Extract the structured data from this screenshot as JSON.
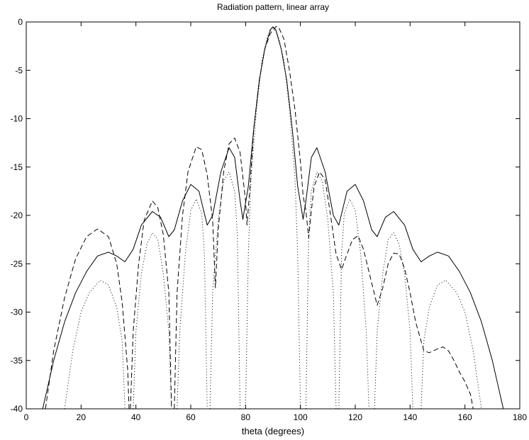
{
  "chart_data": {
    "type": "line",
    "title": "Radiation pattern, linear array",
    "xlabel": "theta (degrees)",
    "ylabel": "",
    "xlim": [
      0,
      180
    ],
    "ylim": [
      -40,
      0
    ],
    "xticks": [
      "0",
      "20",
      "40",
      "60",
      "80",
      "100",
      "120",
      "140",
      "160",
      "180"
    ],
    "yticks": [
      "0",
      "-5",
      "-10",
      "-15",
      "-20",
      "-25",
      "-30",
      "-35",
      "-40"
    ],
    "grid": false,
    "legend": "none",
    "series": [
      {
        "style": "solid",
        "color": "#000000",
        "points": [
          [
            6,
            -40
          ],
          [
            10,
            -35
          ],
          [
            14,
            -31
          ],
          [
            18,
            -28
          ],
          [
            22,
            -25.8
          ],
          [
            26,
            -24.2
          ],
          [
            30,
            -23.8
          ],
          [
            33,
            -24.2
          ],
          [
            36,
            -24.8
          ],
          [
            39,
            -23.5
          ],
          [
            42,
            -21
          ],
          [
            46,
            -19.6
          ],
          [
            49,
            -20.2
          ],
          [
            52,
            -22.2
          ],
          [
            54,
            -21.5
          ],
          [
            57,
            -18.5
          ],
          [
            60,
            -16.8
          ],
          [
            63,
            -17.5
          ],
          [
            66,
            -21
          ],
          [
            68,
            -20
          ],
          [
            71,
            -15.5
          ],
          [
            74,
            -13
          ],
          [
            76,
            -14
          ],
          [
            78,
            -18.5
          ],
          [
            79,
            -20.4
          ],
          [
            81,
            -17
          ],
          [
            83,
            -11
          ],
          [
            85,
            -6
          ],
          [
            87,
            -2.8
          ],
          [
            89,
            -0.8
          ],
          [
            90,
            -0.5
          ],
          [
            91,
            -0.8
          ],
          [
            93,
            -2.8
          ],
          [
            95,
            -6
          ],
          [
            97,
            -11
          ],
          [
            99,
            -17
          ],
          [
            101,
            -20.4
          ],
          [
            102,
            -18.5
          ],
          [
            104,
            -14
          ],
          [
            106,
            -13
          ],
          [
            109,
            -15.5
          ],
          [
            112,
            -20
          ],
          [
            114,
            -21
          ],
          [
            117,
            -17.5
          ],
          [
            120,
            -16.8
          ],
          [
            123,
            -18.5
          ],
          [
            126,
            -21.5
          ],
          [
            128,
            -22.2
          ],
          [
            131,
            -20.2
          ],
          [
            134,
            -19.6
          ],
          [
            138,
            -21
          ],
          [
            141,
            -23.5
          ],
          [
            144,
            -24.8
          ],
          [
            147,
            -24.2
          ],
          [
            150,
            -23.8
          ],
          [
            154,
            -24.2
          ],
          [
            158,
            -25.8
          ],
          [
            162,
            -28
          ],
          [
            166,
            -31
          ],
          [
            170,
            -35
          ],
          [
            174,
            -40
          ]
        ]
      },
      {
        "style": "dashed",
        "color": "#000000",
        "points": [
          [
            7,
            -40
          ],
          [
            10,
            -34
          ],
          [
            14,
            -28.5
          ],
          [
            18,
            -24.5
          ],
          [
            22,
            -22.2
          ],
          [
            26,
            -21.4
          ],
          [
            30,
            -22.2
          ],
          [
            33,
            -25
          ],
          [
            35,
            -29
          ],
          [
            37,
            -36
          ],
          [
            37.5,
            -40
          ],
          [
            null,
            null
          ],
          [
            38,
            -40
          ],
          [
            39,
            -32
          ],
          [
            41,
            -25
          ],
          [
            43,
            -20.5
          ],
          [
            46,
            -18.5
          ],
          [
            48,
            -19.2
          ],
          [
            50,
            -22
          ],
          [
            52,
            -28
          ],
          [
            53,
            -40
          ],
          [
            null,
            null
          ],
          [
            54,
            -40
          ],
          [
            55,
            -28
          ],
          [
            57,
            -20
          ],
          [
            59,
            -15.5
          ],
          [
            62,
            -12.9
          ],
          [
            64,
            -13.2
          ],
          [
            66,
            -15.8
          ],
          [
            68,
            -20.5
          ],
          [
            69,
            -27.5
          ],
          [
            70,
            -21.5
          ],
          [
            72,
            -15.5
          ],
          [
            74,
            -12.6
          ],
          [
            76,
            -12
          ],
          [
            78,
            -13.5
          ],
          [
            80,
            -18.5
          ],
          [
            80.5,
            -21
          ],
          [
            81.5,
            -17.5
          ],
          [
            83,
            -11
          ],
          [
            85,
            -6
          ],
          [
            87,
            -2.8
          ],
          [
            89,
            -1.2
          ],
          [
            91,
            -0.5
          ],
          [
            92,
            -0.5
          ],
          [
            94,
            -1.8
          ],
          [
            96,
            -5
          ],
          [
            98,
            -9
          ],
          [
            100,
            -14.5
          ],
          [
            101,
            -18
          ],
          [
            102,
            -19.5
          ],
          [
            103,
            -22.3
          ],
          [
            104,
            -19.5
          ],
          [
            105,
            -17
          ],
          [
            107,
            -15.5
          ],
          [
            109,
            -16.3
          ],
          [
            111,
            -20
          ],
          [
            113,
            -24
          ],
          [
            115,
            -25.6
          ],
          [
            117,
            -24
          ],
          [
            119,
            -22.5
          ],
          [
            121,
            -22.1
          ],
          [
            123,
            -23.5
          ],
          [
            126,
            -27
          ],
          [
            128,
            -29.3
          ],
          [
            130,
            -27.5
          ],
          [
            132,
            -25
          ],
          [
            134,
            -23.9
          ],
          [
            136,
            -24
          ],
          [
            138,
            -25.5
          ],
          [
            140,
            -28
          ],
          [
            142,
            -31
          ],
          [
            145,
            -34
          ],
          [
            147,
            -34.2
          ],
          [
            150,
            -33.8
          ],
          [
            152,
            -33.6
          ],
          [
            154,
            -34
          ],
          [
            156,
            -35
          ],
          [
            158,
            -36.2
          ],
          [
            160,
            -37.2
          ],
          [
            162,
            -38.5
          ],
          [
            163,
            -40
          ]
        ]
      },
      {
        "style": "dotted",
        "color": "#000000",
        "points": [
          [
            14,
            -40
          ],
          [
            17,
            -34
          ],
          [
            20,
            -30
          ],
          [
            23,
            -28
          ],
          [
            27,
            -26.7
          ],
          [
            30,
            -27.2
          ],
          [
            33,
            -29.5
          ],
          [
            35,
            -33
          ],
          [
            36,
            -40
          ],
          [
            null,
            null
          ],
          [
            39,
            -40
          ],
          [
            40,
            -32
          ],
          [
            42,
            -26
          ],
          [
            44,
            -23
          ],
          [
            46,
            -21.8
          ],
          [
            48,
            -22.5
          ],
          [
            50,
            -26
          ],
          [
            52,
            -32
          ],
          [
            53,
            -40
          ],
          [
            null,
            null
          ],
          [
            55,
            -40
          ],
          [
            56,
            -32
          ],
          [
            58,
            -24
          ],
          [
            60,
            -19.5
          ],
          [
            62,
            -18.3
          ],
          [
            64,
            -19.8
          ],
          [
            65,
            -24
          ],
          [
            66,
            -40
          ],
          [
            null,
            null
          ],
          [
            67,
            -40
          ],
          [
            68,
            -28
          ],
          [
            70,
            -20.5
          ],
          [
            72,
            -16.5
          ],
          [
            74,
            -15.5
          ],
          [
            76,
            -17.5
          ],
          [
            77,
            -22
          ],
          [
            78,
            -40
          ],
          [
            null,
            null
          ],
          [
            80,
            -40
          ],
          [
            81,
            -24
          ],
          [
            82,
            -16
          ],
          [
            84,
            -9
          ],
          [
            86,
            -4
          ],
          [
            88,
            -1.5
          ],
          [
            90,
            -0.5
          ],
          [
            92,
            -1.5
          ],
          [
            94,
            -4
          ],
          [
            96,
            -9
          ],
          [
            98,
            -16
          ],
          [
            99,
            -24
          ],
          [
            100,
            -40
          ],
          [
            null,
            null
          ],
          [
            102,
            -40
          ],
          [
            103,
            -22
          ],
          [
            104,
            -17.5
          ],
          [
            106,
            -15.5
          ],
          [
            108,
            -16.5
          ],
          [
            110,
            -20.5
          ],
          [
            112,
            -28
          ],
          [
            113,
            -40
          ],
          [
            null,
            null
          ],
          [
            114,
            -40
          ],
          [
            115,
            -24
          ],
          [
            116,
            -19.8
          ],
          [
            118,
            -18.3
          ],
          [
            120,
            -19.5
          ],
          [
            122,
            -24
          ],
          [
            124,
            -32
          ],
          [
            125,
            -40
          ],
          [
            null,
            null
          ],
          [
            127,
            -40
          ],
          [
            128,
            -32
          ],
          [
            130,
            -26
          ],
          [
            132,
            -22.5
          ],
          [
            134,
            -21.8
          ],
          [
            136,
            -23
          ],
          [
            138,
            -26
          ],
          [
            140,
            -32
          ],
          [
            141,
            -40
          ],
          [
            null,
            null
          ],
          [
            144,
            -40
          ],
          [
            145,
            -33
          ],
          [
            147,
            -29.5
          ],
          [
            150,
            -27.2
          ],
          [
            153,
            -26.7
          ],
          [
            157,
            -28
          ],
          [
            160,
            -30
          ],
          [
            163,
            -34
          ],
          [
            166,
            -40
          ]
        ]
      }
    ]
  }
}
